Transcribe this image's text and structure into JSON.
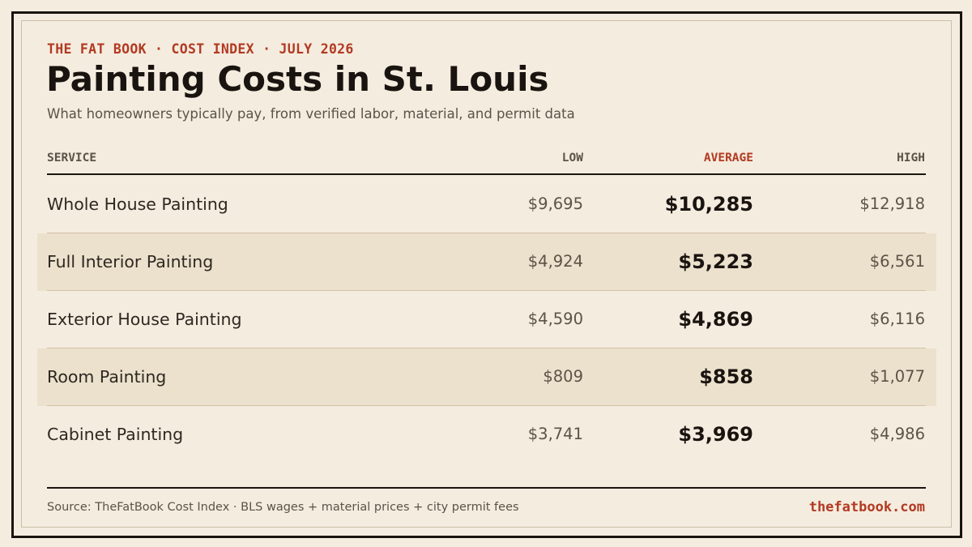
{
  "header": {
    "kicker": "THE FAT BOOK · COST INDEX · JULY 2026",
    "title": "Painting Costs in St. Louis",
    "subtitle": "What homeowners typically pay, from verified labor, material, and permit data"
  },
  "table": {
    "columns": {
      "service": "SERVICE",
      "low": "LOW",
      "average": "AVERAGE",
      "high": "HIGH"
    },
    "rows": [
      {
        "service": "Whole House Painting",
        "low": "$9,695",
        "average": "$10,285",
        "high": "$12,918"
      },
      {
        "service": "Full Interior Painting",
        "low": "$4,924",
        "average": "$5,223",
        "high": "$6,561"
      },
      {
        "service": "Exterior House Painting",
        "low": "$4,590",
        "average": "$4,869",
        "high": "$6,116"
      },
      {
        "service": "Room Painting",
        "low": "$809",
        "average": "$858",
        "high": "$1,077"
      },
      {
        "service": "Cabinet Painting",
        "low": "$3,741",
        "average": "$3,969",
        "high": "$4,986"
      }
    ]
  },
  "footer": {
    "source": "Source: TheFatBook Cost Index · BLS wages + material prices + city permit fees",
    "site": "thefatbook.com"
  },
  "colors": {
    "background": "#f4ecdf",
    "accent": "#b23a22",
    "ink": "#1a1410",
    "row_shade": "#ece1cd"
  }
}
